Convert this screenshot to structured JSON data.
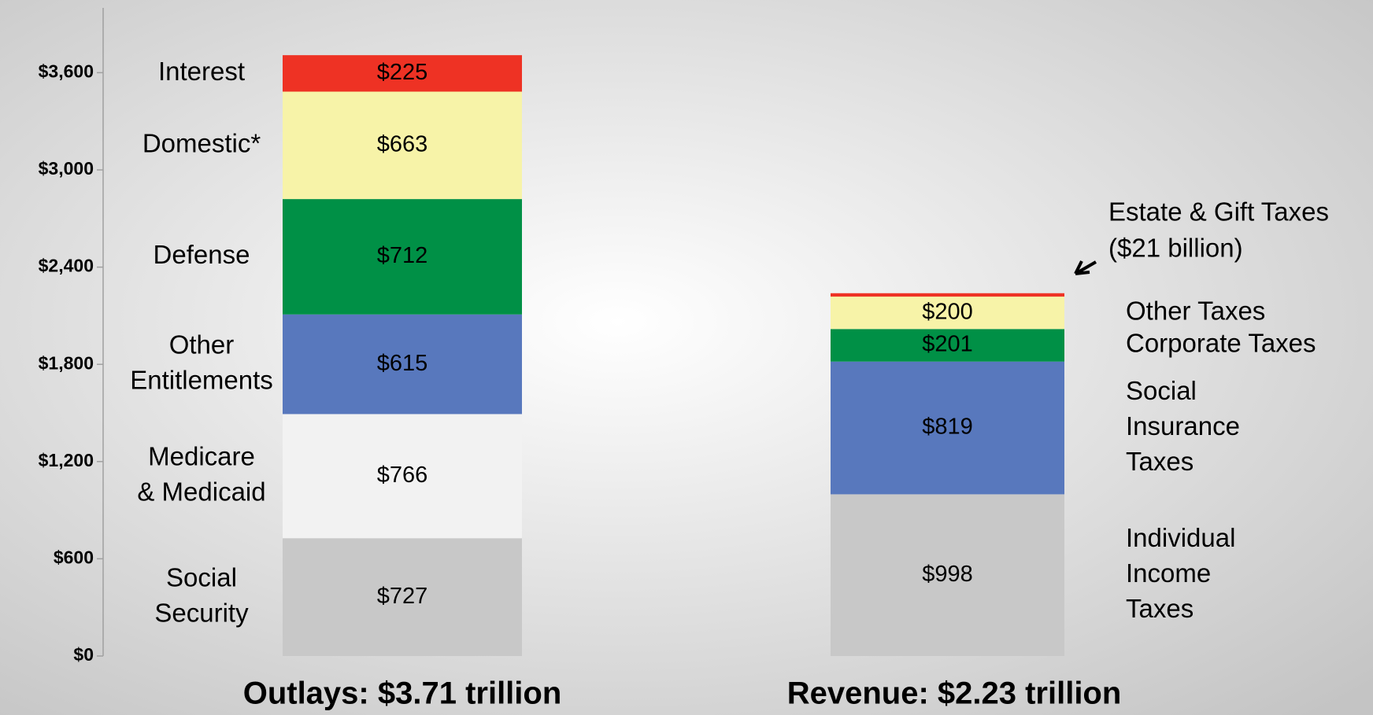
{
  "chart_data": {
    "type": "stacked_bar",
    "ylim": [
      0,
      4000
    ],
    "yticks": [
      {
        "value": 0,
        "label": "$0"
      },
      {
        "value": 600,
        "label": "$600"
      },
      {
        "value": 1200,
        "label": "$1,200"
      },
      {
        "value": 1800,
        "label": "$1,800"
      },
      {
        "value": 2400,
        "label": "$2,400"
      },
      {
        "value": 3000,
        "label": "$3,000"
      },
      {
        "value": 3600,
        "label": "$3,600"
      }
    ],
    "stacks": [
      {
        "label": "Outlays: $3.71 trillion",
        "name_side": "left",
        "segments": [
          {
            "name": [
              "Social",
              "Security"
            ],
            "value": 727,
            "value_label": "$727",
            "color": "#c8c8c8"
          },
          {
            "name": [
              "Medicare",
              "& Medicaid"
            ],
            "value": 766,
            "value_label": "$766",
            "color": "#f2f2f2"
          },
          {
            "name": [
              "Other",
              "Entitlements"
            ],
            "value": 615,
            "value_label": "$615",
            "color": "#5878bd"
          },
          {
            "name": [
              "Defense"
            ],
            "value": 712,
            "value_label": "$712",
            "color": "#009046"
          },
          {
            "name": [
              "Domestic*"
            ],
            "value": 663,
            "value_label": "$663",
            "color": "#f7f3a8"
          },
          {
            "name": [
              "Interest"
            ],
            "value": 225,
            "value_label": "$225",
            "color": "#ee3224"
          }
        ]
      },
      {
        "label": "Revenue: $2.23 trillion",
        "name_side": "right",
        "segments": [
          {
            "name": [
              "Individual",
              "Income",
              "Taxes"
            ],
            "value": 998,
            "value_label": "$998",
            "color": "#c8c8c8"
          },
          {
            "name": [
              "Social",
              "Insurance",
              "Taxes"
            ],
            "value": 819,
            "value_label": "$819",
            "color": "#5878bd"
          },
          {
            "name": [
              "Corporate Taxes"
            ],
            "value": 201,
            "value_label": "$201",
            "color": "#009046"
          },
          {
            "name": [
              "Other Taxes"
            ],
            "value": 200,
            "value_label": "$200",
            "color": "#f7f3a8"
          },
          {
            "name": [
              "Estate & Gift Taxes"
            ],
            "annotation": "($21 billion)",
            "value": 21,
            "color": "#ee3224"
          }
        ]
      }
    ]
  }
}
